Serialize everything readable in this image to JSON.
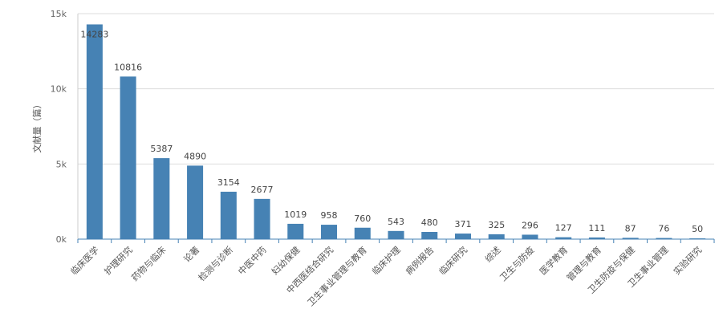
{
  "chart_data": {
    "type": "bar",
    "title": "",
    "xlabel": "",
    "ylabel": "文献量（篇）",
    "ylim": [
      0,
      15000
    ],
    "yticks": [
      {
        "value": 0,
        "label": "0k"
      },
      {
        "value": 5000,
        "label": "5k"
      },
      {
        "value": 10000,
        "label": "10k"
      },
      {
        "value": 15000,
        "label": "15k"
      }
    ],
    "grid": true,
    "legend": "none",
    "bar_color": "#4682b4",
    "categories": [
      "临床医学",
      "护理研究",
      "药物与临床",
      "论著",
      "检测与诊断",
      "中医中药",
      "妇幼保健",
      "中西医结合研究",
      "卫生事业管理与教育",
      "临床护理",
      "病例报告",
      "临床研究",
      "综述",
      "卫生与防疫",
      "医学教育",
      "管理与教育",
      "卫生防疫与保健",
      "卫生事业管理",
      "实验研究"
    ],
    "values": [
      14283,
      10816,
      5387,
      4890,
      3154,
      2677,
      1019,
      958,
      760,
      543,
      480,
      371,
      325,
      296,
      127,
      111,
      87,
      76,
      50
    ]
  }
}
